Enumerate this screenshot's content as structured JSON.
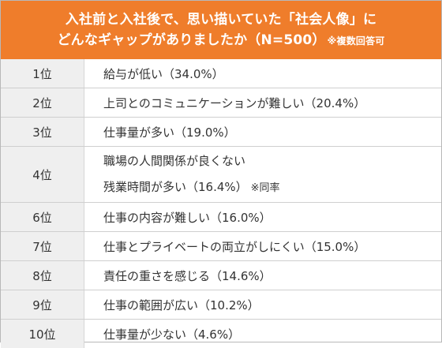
{
  "header": {
    "line1": "入社前と入社後で、思い描いていた「社会人像」に",
    "line2_main": "どんなギャップがありましたか（N=500）",
    "line2_note": "※複数回答可"
  },
  "rows": [
    {
      "rank": "1位",
      "items": [
        "給与が低い（34.0%）"
      ]
    },
    {
      "rank": "2位",
      "items": [
        "上司とのコミュニケーションが難しい（20.4%）"
      ]
    },
    {
      "rank": "3位",
      "items": [
        "仕事量が多い（19.0%）"
      ]
    },
    {
      "rank": "4位",
      "items": [
        "職場の人間関係が良くない",
        "残業時間が多い（16.4%）"
      ],
      "tie_note": "※同率"
    },
    {
      "rank": "6位",
      "items": [
        "仕事の内容が難しい（16.0%）"
      ]
    },
    {
      "rank": "7位",
      "items": [
        "仕事とプライベートの両立がしにくい（15.0%）"
      ]
    },
    {
      "rank": "8位",
      "items": [
        "責任の重さを感じる（14.6%）"
      ]
    },
    {
      "rank": "9位",
      "items": [
        "仕事の範囲が広い（10.2%）"
      ]
    },
    {
      "rank": "10位",
      "items": [
        "仕事量が少ない（4.6%）"
      ]
    }
  ]
}
